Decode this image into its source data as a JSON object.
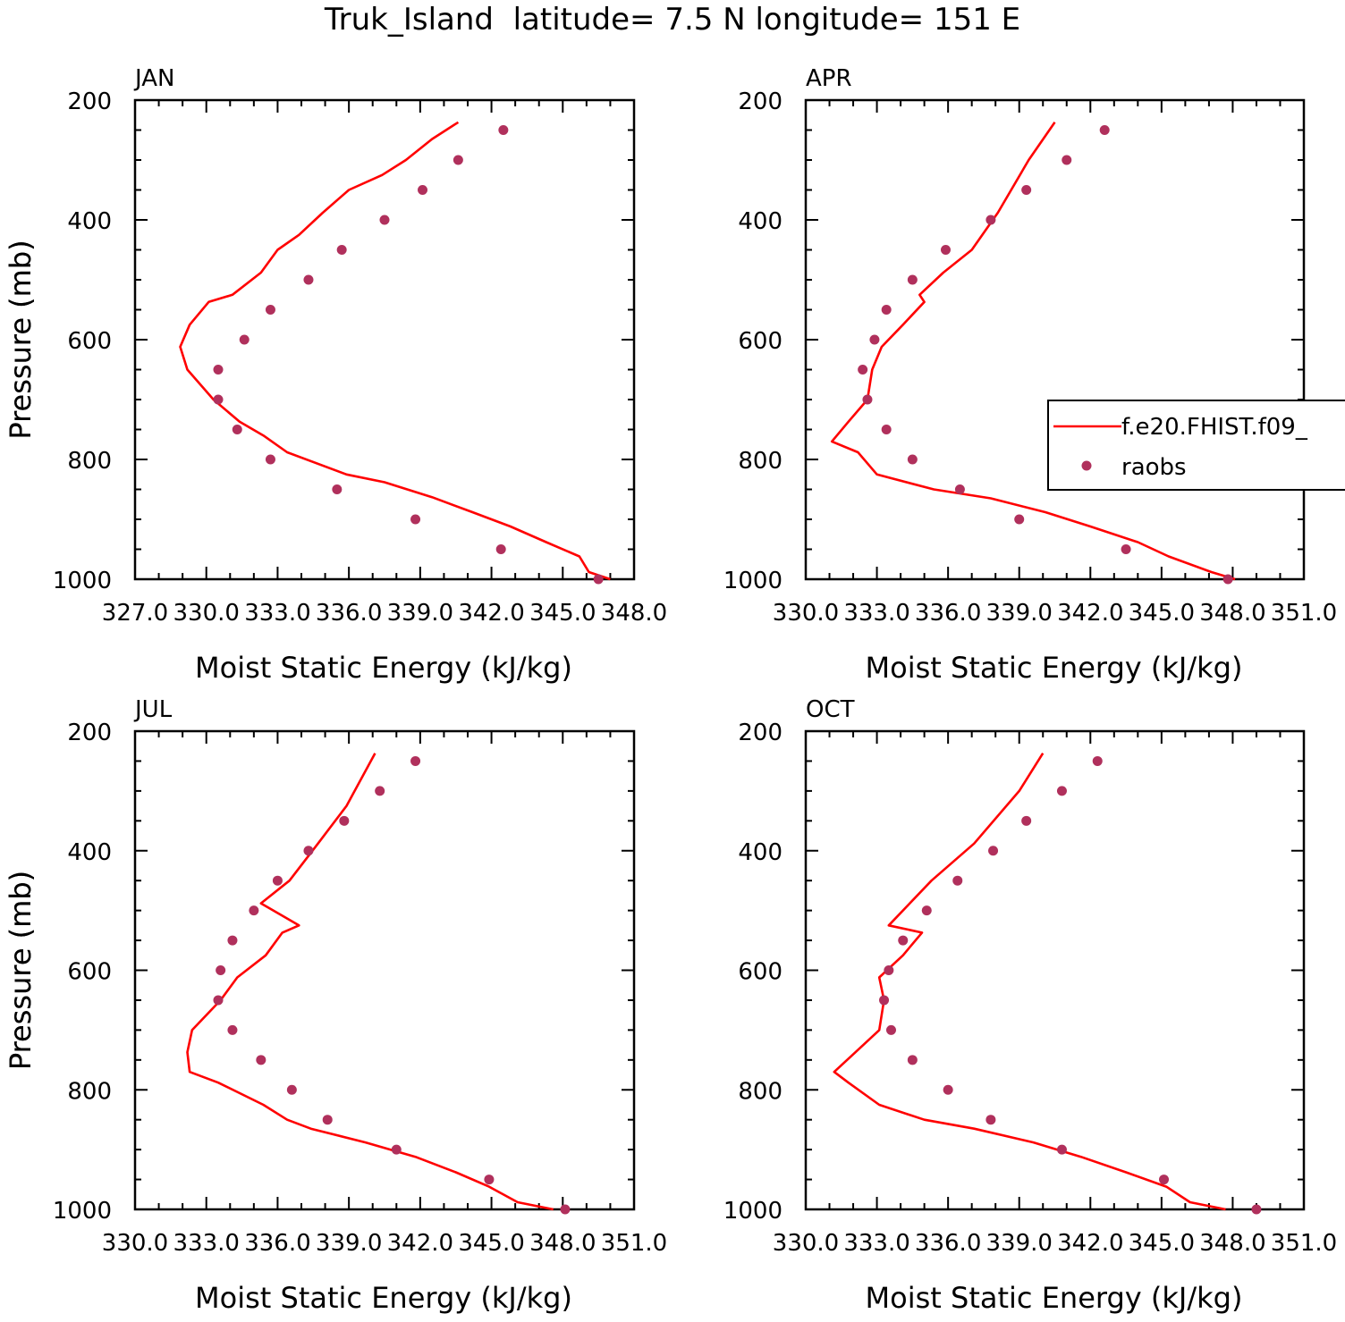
{
  "title": "Truk_Island  latitude= 7.5 N longitude= 151 E",
  "colors": {
    "model": "#ff0000",
    "obs": "#b0305c",
    "axis": "#000000"
  },
  "legend": {
    "placement": "right-middle (APR panel)",
    "model_label": "f.e20.FHIST.f09_",
    "obs_label": "raobs"
  },
  "chart_data": [
    {
      "type": "line",
      "panel": "JAN",
      "xlabel": "Moist Static Energy (kJ/kg)",
      "ylabel": "Pressure (mb)",
      "xlim": [
        327,
        348
      ],
      "ylim": [
        1000,
        200
      ],
      "y_reversed": true,
      "x_major_ticks": [
        327,
        330,
        333,
        336,
        339,
        342,
        345,
        348
      ],
      "x_tick_labels": [
        "327.0",
        "330.0",
        "333.0",
        "336.0",
        "339.0",
        "342.0",
        "345.0",
        "348.0"
      ],
      "y_major_ticks": [
        200,
        400,
        600,
        800,
        1000
      ],
      "series": [
        {
          "name": "f.e20.FHIST.f09_",
          "kind": "line",
          "x": [
            347.0,
            346.1,
            345.7,
            344.3,
            342.8,
            341.2,
            339.5,
            337.5,
            335.9,
            333.4,
            332.4,
            331.4,
            330.3,
            329.2,
            328.9,
            329.3,
            330.1,
            331.1,
            332.3,
            333.0,
            333.9,
            334.9,
            336.0,
            337.4,
            338.4,
            339.5,
            340.6
          ],
          "y": [
            1000,
            988,
            962,
            938,
            912,
            888,
            863,
            838,
            825,
            788,
            760,
            737,
            700,
            650,
            612,
            575,
            537,
            525,
            488,
            450,
            425,
            388,
            350,
            325,
            300,
            265,
            237
          ]
        },
        {
          "name": "raobs",
          "kind": "scatter",
          "x": [
            346.5,
            342.4,
            338.8,
            335.5,
            332.7,
            331.3,
            330.5,
            330.5,
            331.6,
            332.7,
            334.3,
            335.7,
            337.5,
            339.1,
            340.6,
            342.5
          ],
          "y": [
            1000,
            950,
            900,
            850,
            800,
            750,
            700,
            650,
            600,
            550,
            500,
            450,
            400,
            350,
            300,
            250
          ]
        }
      ]
    },
    {
      "type": "line",
      "panel": "APR",
      "xlabel": "Moist Static Energy (kJ/kg)",
      "ylabel": "Pressure (mb)",
      "xlim": [
        330,
        351
      ],
      "ylim": [
        1000,
        200
      ],
      "y_reversed": true,
      "x_major_ticks": [
        330,
        333,
        336,
        339,
        342,
        345,
        348,
        351
      ],
      "x_tick_labels": [
        "330.0",
        "333.0",
        "336.0",
        "339.0",
        "342.0",
        "345.0",
        "348.0",
        "351.0"
      ],
      "y_major_ticks": [
        200,
        400,
        600,
        800,
        1000
      ],
      "series": [
        {
          "name": "f.e20.FHIST.f09_",
          "kind": "line",
          "x": [
            348.1,
            347.1,
            345.3,
            344.0,
            342.0,
            340.1,
            337.8,
            335.4,
            333.0,
            332.2,
            331.1,
            331.8,
            332.6,
            332.8,
            333.2,
            334.1,
            335.0,
            334.8,
            335.8,
            337.0,
            338.1,
            339.4,
            340.5
          ],
          "y": [
            1000,
            988,
            962,
            938,
            912,
            888,
            865,
            850,
            825,
            788,
            770,
            737,
            700,
            650,
            612,
            575,
            537,
            525,
            488,
            450,
            388,
            300,
            237
          ]
        },
        {
          "name": "raobs",
          "kind": "scatter",
          "x": [
            347.8,
            343.5,
            339.0,
            336.5,
            334.5,
            333.4,
            332.6,
            332.4,
            332.9,
            333.4,
            334.5,
            335.9,
            337.8,
            339.3,
            341.0,
            342.6
          ],
          "y": [
            1000,
            950,
            900,
            850,
            800,
            750,
            700,
            650,
            600,
            550,
            500,
            450,
            400,
            350,
            300,
            250
          ]
        }
      ]
    },
    {
      "type": "line",
      "panel": "JUL",
      "xlabel": "Moist Static Energy (kJ/kg)",
      "ylabel": "Pressure (mb)",
      "xlim": [
        330,
        351
      ],
      "ylim": [
        1000,
        200
      ],
      "y_reversed": true,
      "x_major_ticks": [
        330,
        333,
        336,
        339,
        342,
        345,
        348,
        351
      ],
      "x_tick_labels": [
        "330.0",
        "333.0",
        "336.0",
        "339.0",
        "342.0",
        "345.0",
        "348.0",
        "351.0"
      ],
      "y_major_ticks": [
        200,
        400,
        600,
        800,
        1000
      ],
      "series": [
        {
          "name": "f.e20.FHIST.f09_",
          "kind": "line",
          "x": [
            347.6,
            346.1,
            344.9,
            343.5,
            341.8,
            339.7,
            337.4,
            336.4,
            335.4,
            333.5,
            332.3,
            332.2,
            332.4,
            333.6,
            334.3,
            335.5,
            336.2,
            336.9,
            335.3,
            336.5,
            337.7,
            338.9,
            340.1
          ],
          "y": [
            1000,
            988,
            962,
            938,
            912,
            888,
            865,
            850,
            825,
            788,
            770,
            737,
            700,
            650,
            612,
            575,
            537,
            525,
            488,
            450,
            388,
            325,
            237
          ]
        },
        {
          "name": "raobs",
          "kind": "scatter",
          "x": [
            348.1,
            344.9,
            341.0,
            338.1,
            336.6,
            335.3,
            334.1,
            333.5,
            333.6,
            334.1,
            335.0,
            336.0,
            337.3,
            338.8,
            340.3,
            341.8
          ],
          "y": [
            1000,
            950,
            900,
            850,
            800,
            750,
            700,
            650,
            600,
            550,
            500,
            450,
            400,
            350,
            300,
            250
          ]
        }
      ]
    },
    {
      "type": "line",
      "panel": "OCT",
      "xlabel": "Moist Static Energy (kJ/kg)",
      "ylabel": "Pressure (mb)",
      "xlim": [
        330,
        351
      ],
      "ylim": [
        1000,
        200
      ],
      "y_reversed": true,
      "x_major_ticks": [
        330,
        333,
        336,
        339,
        342,
        345,
        348,
        351
      ],
      "x_tick_labels": [
        "330.0",
        "333.0",
        "336.0",
        "339.0",
        "342.0",
        "345.0",
        "348.0",
        "351.0"
      ],
      "y_major_ticks": [
        200,
        400,
        600,
        800,
        1000
      ],
      "series": [
        {
          "name": "f.e20.FHIST.f09_",
          "kind": "line",
          "x": [
            347.7,
            346.2,
            345.2,
            343.5,
            341.6,
            339.6,
            337.1,
            335.0,
            333.1,
            331.8,
            331.2,
            332.1,
            333.1,
            333.3,
            333.1,
            334.1,
            334.9,
            333.5,
            335.3,
            337.1,
            339.0,
            340.0
          ],
          "y": [
            1000,
            988,
            962,
            938,
            912,
            888,
            865,
            850,
            825,
            788,
            770,
            737,
            700,
            650,
            612,
            575,
            537,
            525,
            450,
            388,
            300,
            237
          ]
        },
        {
          "name": "raobs",
          "kind": "scatter",
          "x": [
            349.0,
            345.1,
            340.8,
            337.8,
            336.0,
            334.5,
            333.6,
            333.3,
            333.5,
            334.1,
            335.1,
            336.4,
            337.9,
            339.3,
            340.8,
            342.3
          ],
          "y": [
            1000,
            950,
            900,
            850,
            800,
            750,
            700,
            650,
            600,
            550,
            500,
            450,
            400,
            350,
            300,
            250
          ]
        }
      ]
    }
  ]
}
